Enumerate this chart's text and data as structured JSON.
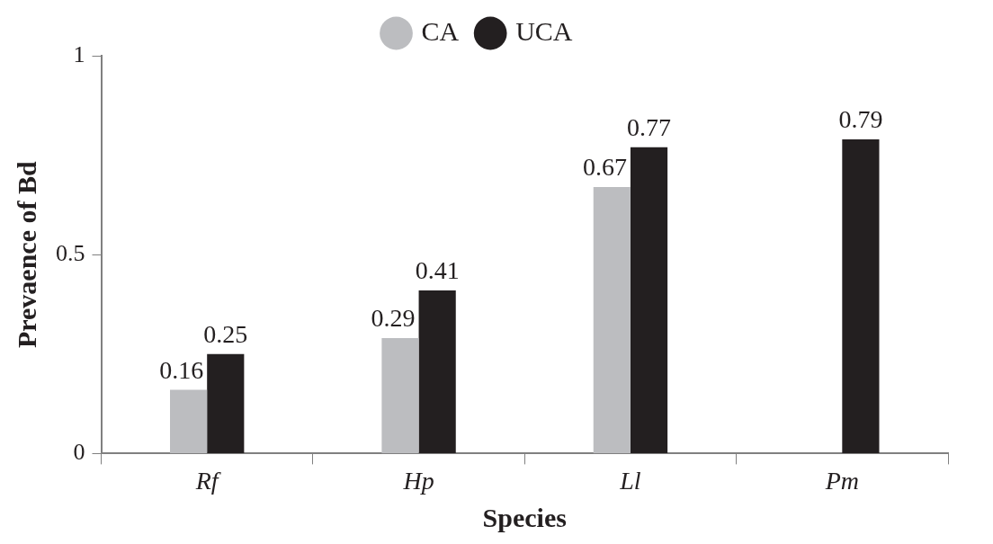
{
  "chart_data": {
    "type": "bar",
    "xlabel": "Species",
    "ylabel": "Prevaence of Bd",
    "categories": [
      "Rf",
      "Hp",
      "Ll",
      "Pm"
    ],
    "series": [
      {
        "name": "CA",
        "color": "#bcbdc0",
        "values": [
          0.16,
          0.29,
          0.67,
          null
        ]
      },
      {
        "name": "UCA",
        "color": "#231f20",
        "values": [
          0.25,
          0.41,
          0.77,
          0.79
        ]
      }
    ],
    "ylim": [
      0,
      1
    ],
    "yticks": [
      0,
      0.5,
      1
    ],
    "grid": false,
    "legend": "top",
    "data_labels": true
  }
}
